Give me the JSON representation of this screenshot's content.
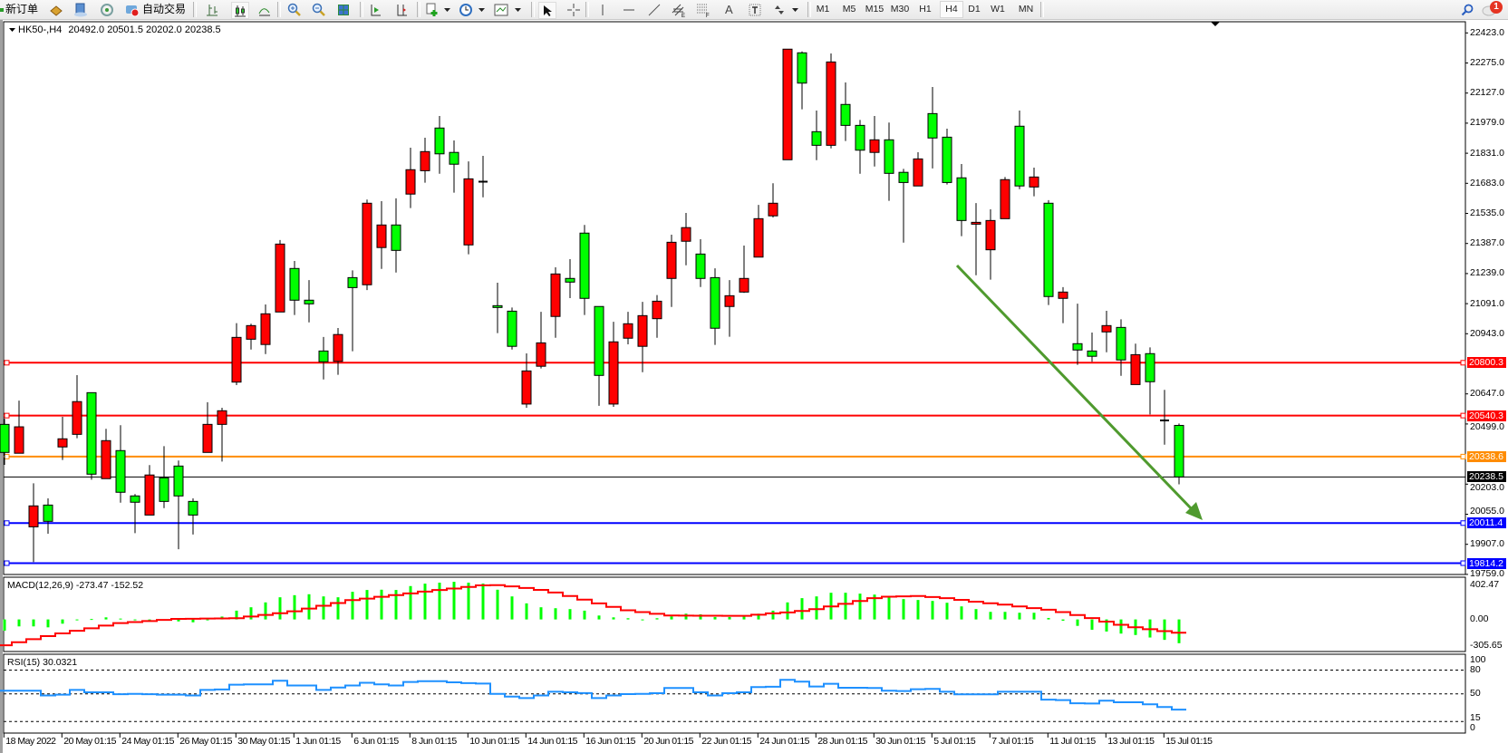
{
  "toolbar": {
    "new_order_label": "新订单",
    "auto_trading_label": "自动交易",
    "icons": [
      "new-order-icon",
      "market-watch-icon",
      "navigator-icon",
      "signals-icon",
      "auto-trading-icon",
      "bar-chart-icon",
      "candlestick-icon",
      "line-chart-icon",
      "zoom-in-icon",
      "zoom-out-icon",
      "tile-windows-icon",
      "auto-scroll-icon",
      "chart-shift-icon",
      "indicators-icon",
      "periods-icon",
      "templates-icon",
      "cursor-icon",
      "crosshair-icon",
      "vertical-line-icon",
      "horizontal-line-icon",
      "trendline-icon",
      "equidistant-channel-icon",
      "fibonacci-icon",
      "text-icon",
      "text-label-icon",
      "arrows-icon",
      "search-icon",
      "chat-icon"
    ],
    "text_tool_label": "A",
    "timeframes": [
      "M1",
      "M5",
      "M15",
      "M30",
      "H1",
      "H4",
      "D1",
      "W1",
      "MN"
    ],
    "active_timeframe": "H4",
    "notification_count": "1"
  },
  "chart": {
    "symbol_label": "HK50-,H4",
    "ohlc": [
      "20492.0",
      "20501.5",
      "20202.0",
      "20238.5"
    ],
    "colors": {
      "bull": "#ff0000",
      "bear": "#00ff00",
      "outline": "#000000",
      "trend_arrow": "#4f9a2e"
    },
    "candles": [
      [
        20497,
        20525,
        20298,
        20359
      ],
      [
        20355,
        20614,
        20355,
        20485
      ],
      [
        19993,
        20207,
        19820,
        20096
      ],
      [
        20100,
        20133,
        19959,
        20020
      ],
      [
        20386,
        20534,
        20322,
        20426
      ],
      [
        20448,
        20739,
        20429,
        20609
      ],
      [
        20653,
        20653,
        20225,
        20252
      ],
      [
        20230,
        20475,
        20230,
        20417
      ],
      [
        20368,
        20493,
        20112,
        20163
      ],
      [
        20145,
        20154,
        19962,
        20114
      ],
      [
        20051,
        20297,
        20051,
        20248
      ],
      [
        20234,
        20390,
        20085,
        20118
      ],
      [
        20292,
        20319,
        19883,
        20145
      ],
      [
        20118,
        20133,
        19955,
        20051
      ],
      [
        20359,
        20606,
        20359,
        20497
      ],
      [
        20497,
        20579,
        20314,
        20564
      ],
      [
        20705,
        20995,
        20690,
        20925
      ],
      [
        20916,
        20992,
        20865,
        20983
      ],
      [
        20890,
        21087,
        20843,
        21041
      ],
      [
        21050,
        21404,
        21050,
        21384
      ],
      [
        21264,
        21301,
        21035,
        21108
      ],
      [
        21108,
        21207,
        20999,
        21090
      ],
      [
        20858,
        20927,
        20718,
        20805
      ],
      [
        20807,
        20971,
        20741,
        20939
      ],
      [
        21219,
        21255,
        20857,
        21170
      ],
      [
        21184,
        21603,
        21158,
        21585
      ],
      [
        21367,
        21595,
        21262,
        21478
      ],
      [
        21478,
        21609,
        21244,
        21353
      ],
      [
        21630,
        21858,
        21561,
        21750
      ],
      [
        21745,
        21907,
        21686,
        21839
      ],
      [
        21955,
        22014,
        21730,
        21828
      ],
      [
        21835,
        21894,
        21637,
        21777
      ],
      [
        21380,
        21791,
        21334,
        21705
      ],
      [
        21690,
        21818,
        21614,
        21692
      ],
      [
        21081,
        21194,
        20946,
        21072
      ],
      [
        21054,
        21072,
        20865,
        20881
      ],
      [
        20597,
        20846,
        20579,
        20760
      ],
      [
        20783,
        21051,
        20772,
        20898
      ],
      [
        21028,
        21270,
        20923,
        21237
      ],
      [
        21215,
        21310,
        21118,
        21197
      ],
      [
        21438,
        21478,
        21035,
        21117
      ],
      [
        21077,
        21077,
        20588,
        20738
      ],
      [
        20597,
        21002,
        20583,
        20903
      ],
      [
        20921,
        21051,
        20891,
        20992
      ],
      [
        20881,
        21100,
        20754,
        21032
      ],
      [
        21017,
        21133,
        20923,
        21103
      ],
      [
        21215,
        21430,
        21075,
        21393
      ],
      [
        21398,
        21537,
        21280,
        21465
      ],
      [
        21335,
        21408,
        21173,
        21215
      ],
      [
        21219,
        21265,
        20888,
        20970
      ],
      [
        21077,
        21207,
        20928,
        21130
      ],
      [
        21148,
        21377,
        21144,
        21215
      ],
      [
        21320,
        21577,
        21320,
        21509
      ],
      [
        21523,
        21683,
        21515,
        21585
      ],
      [
        21799,
        22343,
        21799,
        22343
      ],
      [
        22325,
        22332,
        22047,
        22176
      ],
      [
        21937,
        22041,
        21797,
        21870
      ],
      [
        21870,
        22322,
        21855,
        22280
      ],
      [
        22071,
        22179,
        21891,
        21968
      ],
      [
        21968,
        21995,
        21730,
        21846
      ],
      [
        21835,
        22014,
        21766,
        21897
      ],
      [
        21897,
        21982,
        21597,
        21732
      ],
      [
        21737,
        21754,
        21391,
        21687
      ],
      [
        21670,
        21836,
        21670,
        21803
      ],
      [
        22026,
        22157,
        21756,
        21906
      ],
      [
        21910,
        21952,
        21677,
        21687
      ],
      [
        21710,
        21778,
        21423,
        21500
      ],
      [
        21482,
        21586,
        21231,
        21491
      ],
      [
        21356,
        21555,
        21209,
        21500
      ],
      [
        21509,
        21714,
        21509,
        21701
      ],
      [
        21964,
        22041,
        21654,
        21670
      ],
      [
        21665,
        21760,
        21619,
        21714
      ],
      [
        21585,
        21600,
        21084,
        21126
      ],
      [
        21117,
        21172,
        20995,
        21148
      ],
      [
        20894,
        21091,
        20790,
        20863
      ],
      [
        20858,
        20949,
        20805,
        20832
      ],
      [
        20952,
        21056,
        20852,
        20983
      ],
      [
        20974,
        21014,
        20736,
        20814
      ],
      [
        20693,
        20894,
        20693,
        20840
      ],
      [
        20845,
        20876,
        20546,
        20707
      ],
      [
        20518,
        20667,
        20397,
        20515
      ],
      [
        20492,
        20501.5,
        20202,
        20238.5
      ]
    ],
    "price_axis": [
      "22423.0",
      "22275.0",
      "22127.0",
      "21979.0",
      "21831.0",
      "21683.0",
      "21535.0",
      "21387.0",
      "21239.0",
      "21091.0",
      "20943.0",
      "20647.0",
      "20499.0",
      "20203.0",
      "20055.0",
      "19907.0",
      "19759.0"
    ],
    "levels": [
      {
        "value": "20800.3",
        "color": "#ff0000"
      },
      {
        "value": "20540.3",
        "color": "#ff0000"
      },
      {
        "value": "20338.6",
        "color": "#ff8c00"
      },
      {
        "value": "20238.5",
        "color": "#000000"
      },
      {
        "value": "20011.4",
        "color": "#0000ff"
      },
      {
        "value": "19814.2",
        "color": "#0000ff"
      }
    ]
  },
  "macd": {
    "name": "MACD(12,26,9)",
    "main_value": "-273.47",
    "signal_value": "-152.52",
    "axis": [
      "402.47",
      "0.00",
      "-305.65"
    ],
    "colors": {
      "histogram": "#00ff00",
      "signal": "#ff0000"
    },
    "histogram": [
      -129,
      -80,
      -80,
      -91,
      -49,
      -10,
      5,
      24,
      10,
      0,
      -5,
      -7,
      -23,
      -33,
      0,
      33,
      101,
      140,
      196,
      255,
      279,
      290,
      265,
      255,
      318,
      339,
      342,
      339,
      384,
      412,
      423,
      433,
      423,
      412,
      342,
      265,
      185,
      140,
      129,
      119,
      101,
      45,
      24,
      14,
      -3,
      14,
      35,
      66,
      59,
      28,
      28,
      35,
      66,
      101,
      196,
      245,
      265,
      307,
      307,
      297,
      286,
      255,
      234,
      224,
      213,
      192,
      150,
      119,
      87,
      87,
      77,
      77,
      17,
      -15,
      -74,
      -119,
      -139,
      -163,
      -179,
      -208,
      -235,
      -273.47
    ],
    "signal": [
      -297,
      -262,
      -227,
      -192,
      -160,
      -131,
      -102,
      -71,
      -42,
      -30,
      -18,
      -6,
      6,
      8,
      10,
      12,
      14,
      33,
      52,
      71,
      93,
      125,
      157,
      189,
      222,
      240,
      260,
      280,
      300,
      320,
      338,
      356,
      374,
      392,
      395,
      380,
      362,
      340,
      310,
      270,
      228,
      185,
      145,
      105,
      85,
      65,
      45,
      44,
      43,
      43,
      42,
      42,
      55,
      70,
      80,
      98,
      118,
      150,
      180,
      212,
      245,
      262,
      266,
      269,
      258,
      245,
      225,
      205,
      186,
      170,
      150,
      130,
      112,
      85,
      50,
      15,
      -25,
      -62,
      -90,
      -113,
      -135,
      -152.52
    ]
  },
  "rsi": {
    "name": "RSI(15)",
    "value": "30.0321",
    "axis": [
      "100",
      "80",
      "50",
      "15",
      "0"
    ],
    "levels": [
      80,
      50,
      15
    ],
    "color": "#1e90ff",
    "values": [
      53.9,
      54,
      54,
      48,
      49,
      55,
      52,
      52,
      49.5,
      50,
      49.5,
      49,
      49,
      48,
      55,
      55.6,
      61.6,
      62,
      62,
      66.5,
      60.5,
      60.5,
      55,
      58,
      60.5,
      64,
      62,
      60.5,
      65,
      66,
      66,
      64.5,
      63.5,
      63,
      50,
      46.5,
      44.6,
      48,
      52.6,
      52,
      51,
      44.7,
      48,
      49.6,
      50,
      50.8,
      57.4,
      57.4,
      52,
      48,
      50.8,
      52,
      58.5,
      59,
      67.7,
      65.4,
      59.2,
      62.7,
      57.7,
      57.7,
      57.4,
      53.9,
      53.5,
      55.8,
      56.2,
      52.7,
      49.3,
      49.3,
      49.3,
      52.7,
      52.7,
      52.7,
      42.7,
      42,
      38.1,
      37.8,
      41.3,
      39.4,
      39.4,
      36.7,
      33.3,
      30.0321
    ]
  },
  "time_axis": [
    "18 May 2022",
    "20 May 01:15",
    "24 May 01:15",
    "26 May 01:15",
    "30 May 01:15",
    "1 Jun 01:15",
    "6 Jun 01:15",
    "8 Jun 01:15",
    "10 Jun 01:15",
    "14 Jun 01:15",
    "16 Jun 01:15",
    "20 Jun 01:15",
    "22 Jun 01:15",
    "24 Jun 01:15",
    "28 Jun 01:15",
    "30 Jun 01:15",
    "5 Jul 01:15",
    "7 Jul 01:15",
    "11 Jul 01:15",
    "13 Jul 01:15",
    "15 Jul 01:15"
  ]
}
